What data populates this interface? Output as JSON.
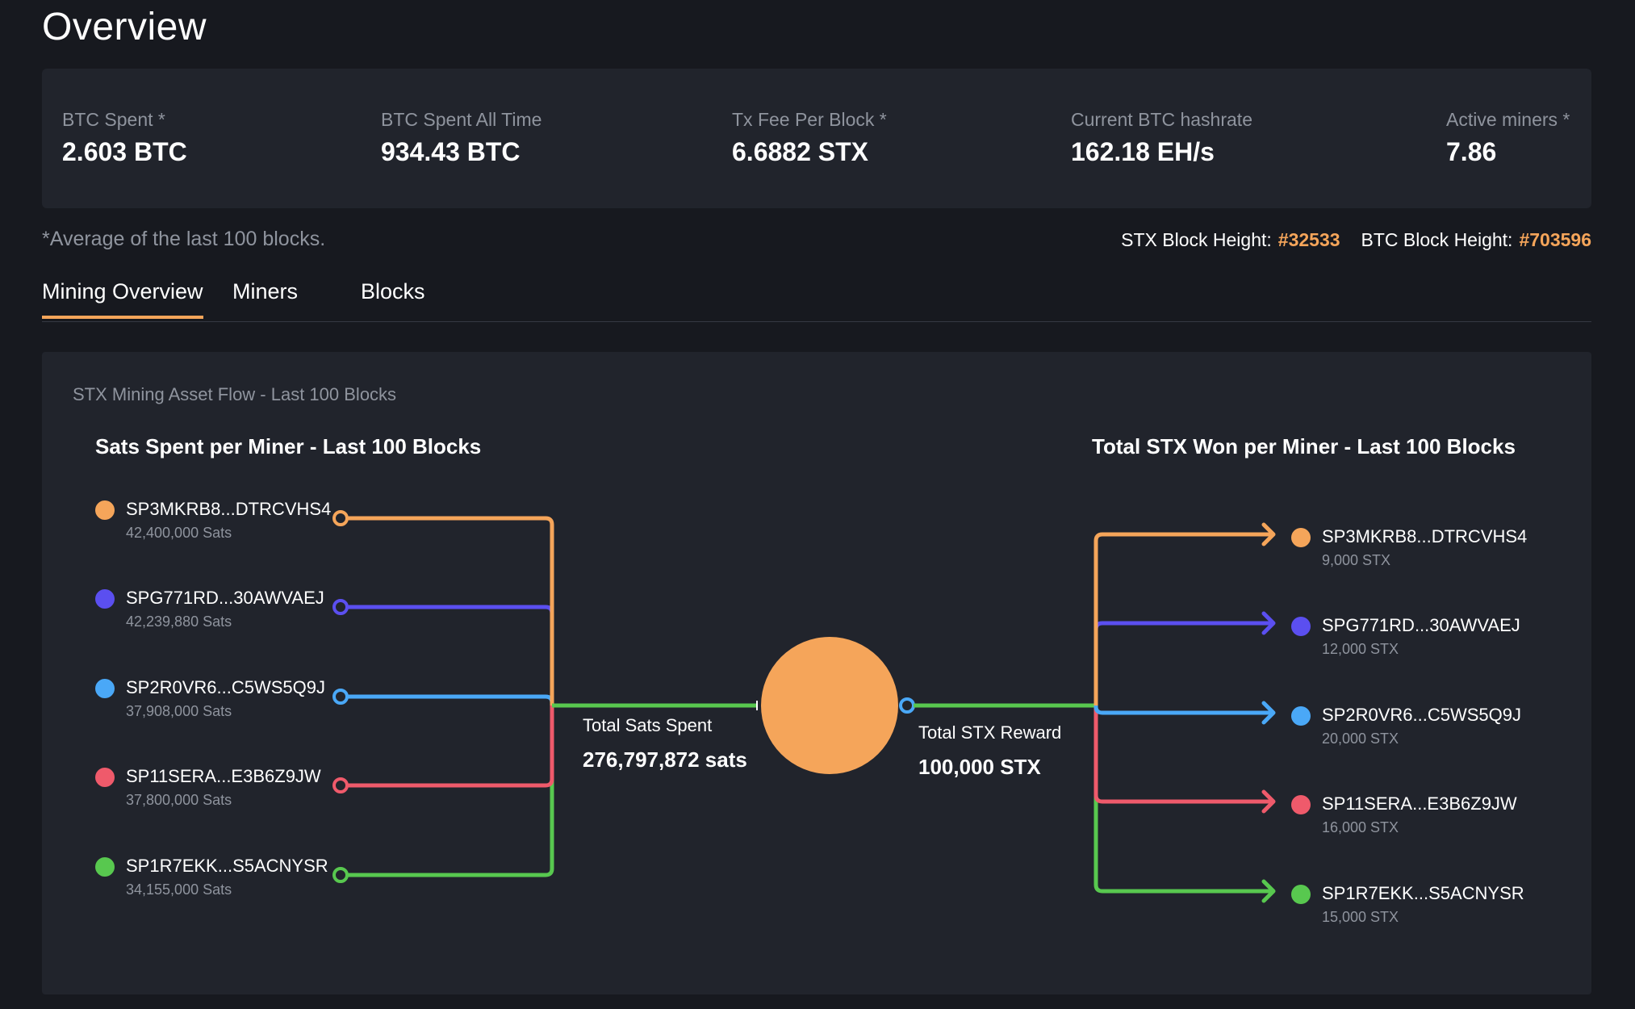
{
  "page": {
    "title": "Overview"
  },
  "stats": [
    {
      "label": "BTC Spent *",
      "value": "2.603 BTC"
    },
    {
      "label": "BTC Spent All Time",
      "value": "934.43 BTC"
    },
    {
      "label": "Tx Fee Per Block *",
      "value": "6.6882 STX"
    },
    {
      "label": "Current BTC hashrate",
      "value": "162.18 EH/s"
    },
    {
      "label": "Active miners *",
      "value": "7.86"
    }
  ],
  "note": "*Average of the last 100 blocks.",
  "heights": {
    "stx_label": "STX Block Height:",
    "stx_value": "#32533",
    "btc_label": "BTC Block Height:",
    "btc_value": "#703596"
  },
  "tabs": [
    {
      "label": "Mining Overview",
      "active": true
    },
    {
      "label": "Miners",
      "active": false
    },
    {
      "label": "Blocks",
      "active": false
    }
  ],
  "flow": {
    "panel_title": "STX Mining Asset Flow - Last 100 Blocks",
    "left_title": "Sats Spent per Miner - Last 100 Blocks",
    "right_title": "Total STX Won per Miner - Last 100 Blocks",
    "total_spent_label": "Total Sats Spent",
    "total_spent_value": "276,797,872 sats",
    "total_reward_label": "Total STX Reward",
    "total_reward_value": "100,000 STX",
    "miners": [
      {
        "name": "SP3MKRB8...DTRCVHS4",
        "sats": "42,400,000 Sats",
        "stx": "9,000 STX",
        "color": "#f5a55a"
      },
      {
        "name": "SPG771RD...30AWVAEJ",
        "sats": "42,239,880 Sats",
        "stx": "12,000 STX",
        "color": "#5b4ff0"
      },
      {
        "name": "SP2R0VR6...C5WS5Q9J",
        "sats": "37,908,000 Sats",
        "stx": "20,000 STX",
        "color": "#4aa8f7"
      },
      {
        "name": "SP11SERA...E3B6Z9JW",
        "sats": "37,800,000 Sats",
        "stx": "16,000 STX",
        "color": "#ef5a6b"
      },
      {
        "name": "SP1R7EKK...S5ACNYSR",
        "sats": "34,155,000 Sats",
        "stx": "15,000 STX",
        "color": "#58c84f"
      }
    ],
    "center_color": "#f5a55a",
    "trunk_color": "#58c84f"
  }
}
